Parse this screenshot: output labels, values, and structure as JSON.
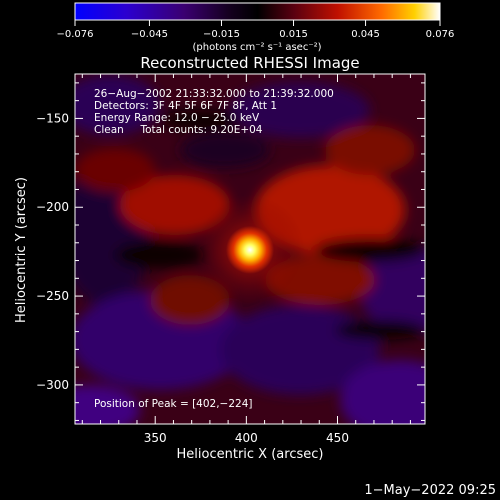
{
  "chart_data": {
    "type": "heatmap",
    "title": "Reconstructed RHESSI Image",
    "xlabel": "Heliocentric X (arcsec)",
    "ylabel": "Heliocentric Y (arcsec)",
    "xlim": [
      306,
      498
    ],
    "ylim": [
      -322,
      -125
    ],
    "x_ticks": [
      350,
      400,
      450
    ],
    "y_ticks": [
      -150,
      -200,
      -250,
      -300
    ],
    "x_tick_labels": [
      "350",
      "400",
      "450"
    ],
    "y_tick_labels": [
      "−150",
      "−200",
      "−250",
      "−300"
    ],
    "colorbar": {
      "range": [
        -0.076,
        0.076
      ],
      "ticks": [
        -0.076,
        -0.045,
        -0.015,
        0.015,
        0.045,
        0.076
      ],
      "tick_labels": [
        "−0.076",
        "−0.045",
        "−0.015",
        "0.015",
        "0.045",
        "0.076"
      ],
      "unit_label": "(photons cm⁻² s⁻¹ asec⁻²)"
    },
    "info_lines": [
      "26−Aug−2002 21:33:32.000 to 21:39:32.000",
      "Detectors: 3F 4F 5F 6F 7F 8F, Att 1",
      "Energy Range: 12.0 − 25.0 keV",
      "Clean     Total counts: 9.20E+04"
    ],
    "peak_label": "Position of Peak = [402,−224]",
    "peak": {
      "x": 402,
      "y": -224
    },
    "grid": false,
    "colors": {
      "background": "#000000",
      "text": "#ffffff"
    }
  },
  "footer": {
    "timestamp": "1−May−2022 09:25"
  }
}
